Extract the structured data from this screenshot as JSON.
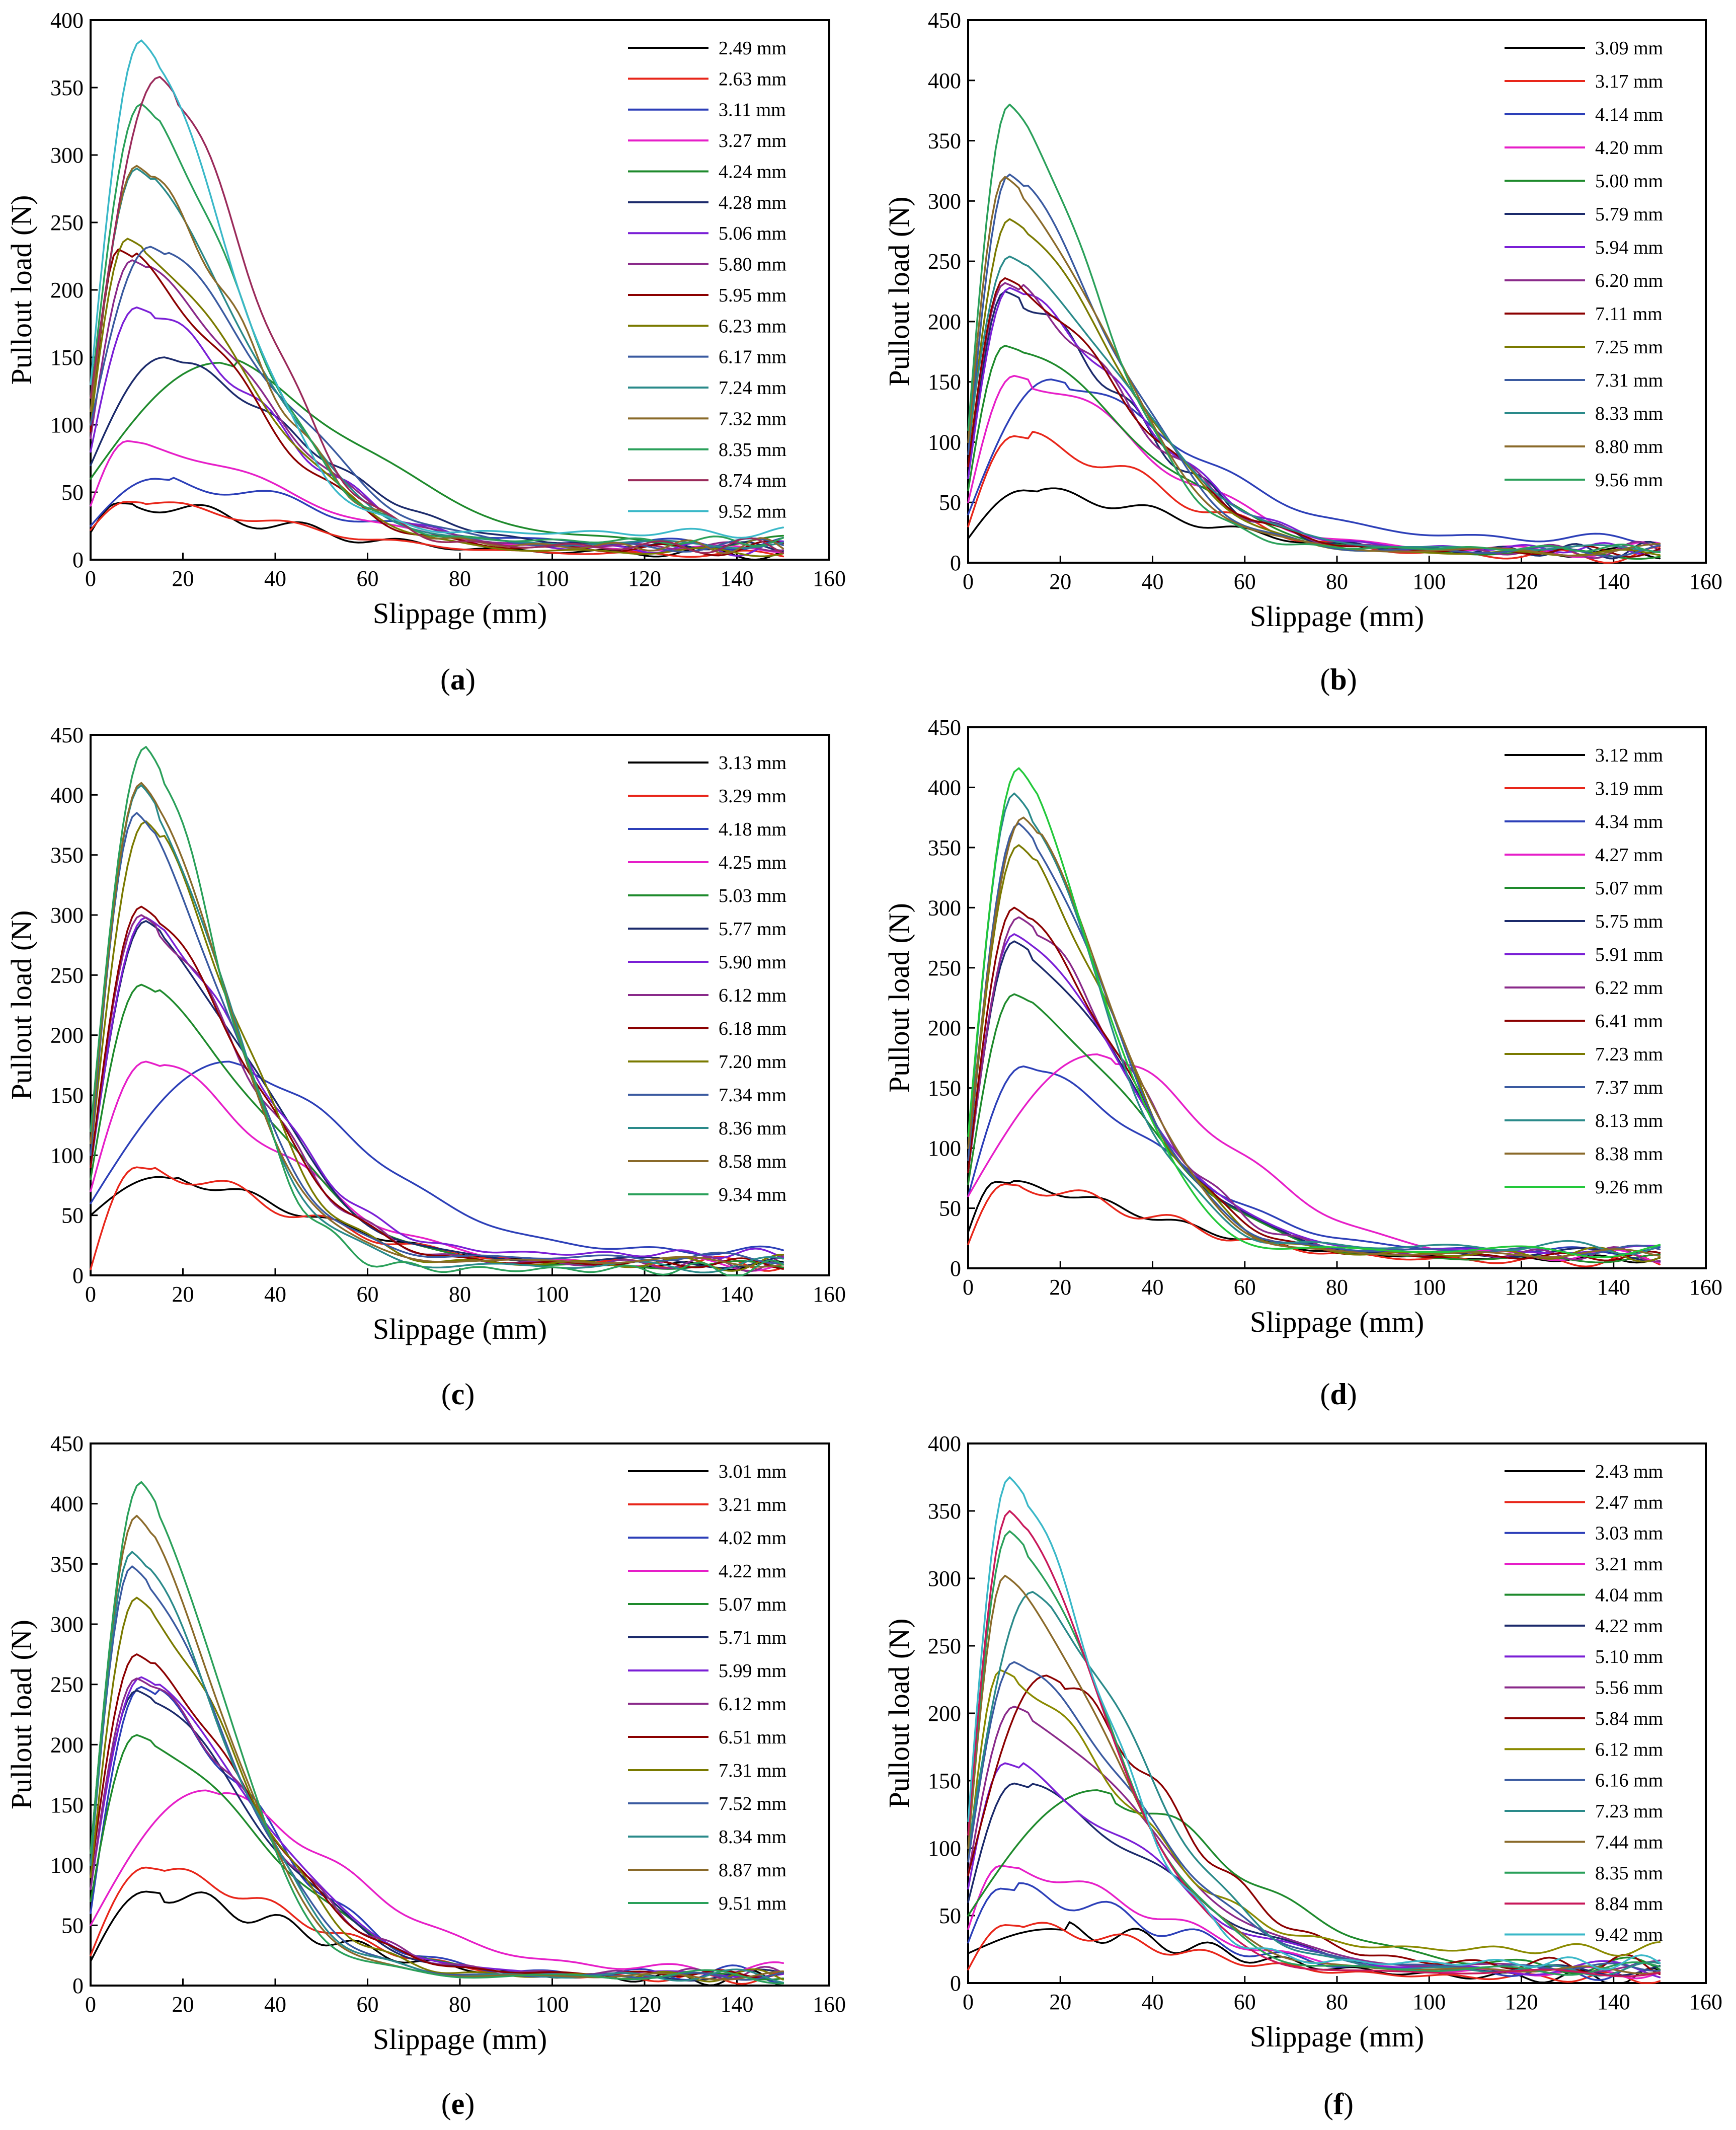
{
  "chart_data": [
    {
      "panel": "a",
      "type": "line",
      "xlabel": "Slippage (mm)",
      "ylabel": "Pullout load (N)",
      "xlim": [
        0,
        160
      ],
      "ylim": [
        0,
        400
      ],
      "xticks": [
        0,
        20,
        40,
        60,
        80,
        100,
        120,
        140,
        160
      ],
      "yticks": [
        0,
        50,
        100,
        150,
        200,
        250,
        300,
        350,
        400
      ],
      "legend_position": "top-right",
      "series": [
        {
          "name": "2.49 mm",
          "color": "#000000",
          "start": 20,
          "peak_x": 6,
          "peak": 42,
          "end": 5
        },
        {
          "name": "2.63 mm",
          "color": "#e8261a",
          "start": 22,
          "peak_x": 8,
          "peak": 43,
          "end": 4
        },
        {
          "name": "3.11 mm",
          "color": "#2c3fb8",
          "start": 25,
          "peak_x": 14,
          "peak": 60,
          "end": 12
        },
        {
          "name": "3.27 mm",
          "color": "#e61ec8",
          "start": 40,
          "peak_x": 8,
          "peak": 88,
          "end": 8
        },
        {
          "name": "4.24 mm",
          "color": "#1e8a2c",
          "start": 60,
          "peak_x": 28,
          "peak": 146,
          "end": 12
        },
        {
          "name": "4.28 mm",
          "color": "#1b2a6b",
          "start": 70,
          "peak_x": 16,
          "peak": 150,
          "end": 10
        },
        {
          "name": "5.06 mm",
          "color": "#7a1fd6",
          "start": 80,
          "peak_x": 10,
          "peak": 187,
          "end": 8
        },
        {
          "name": "5.80 mm",
          "color": "#8a2a8a",
          "start": 90,
          "peak_x": 9,
          "peak": 222,
          "end": 10
        },
        {
          "name": "5.95 mm",
          "color": "#8b0000",
          "start": 95,
          "peak_x": 6,
          "peak": 230,
          "end": 8
        },
        {
          "name": "6.23 mm",
          "color": "#7a7a00",
          "start": 100,
          "peak_x": 8,
          "peak": 238,
          "end": 6
        },
        {
          "name": "6.17 mm",
          "color": "#3a5aa0",
          "start": 100,
          "peak_x": 13,
          "peak": 232,
          "end": 10
        },
        {
          "name": "7.24 mm",
          "color": "#2a8a8a",
          "start": 110,
          "peak_x": 10,
          "peak": 290,
          "end": 12
        },
        {
          "name": "7.32 mm",
          "color": "#8a6a2a",
          "start": 110,
          "peak_x": 10,
          "peak": 292,
          "end": 10
        },
        {
          "name": "8.35 mm",
          "color": "#2aa05a",
          "start": 120,
          "peak_x": 11,
          "peak": 338,
          "end": 14
        },
        {
          "name": "8.74 mm",
          "color": "#9a2a5a",
          "start": 120,
          "peak_x": 15,
          "peak": 358,
          "end": 10
        },
        {
          "name": "9.52 mm",
          "color": "#3ab8c8",
          "start": 130,
          "peak_x": 11,
          "peak": 385,
          "end": 20
        }
      ]
    },
    {
      "panel": "b",
      "type": "line",
      "xlabel": "Slippage (mm)",
      "ylabel": "Pullout load (N)",
      "xlim": [
        0,
        160
      ],
      "ylim": [
        0,
        450
      ],
      "xticks": [
        0,
        20,
        40,
        60,
        80,
        100,
        120,
        140,
        160
      ],
      "yticks": [
        0,
        50,
        100,
        150,
        200,
        250,
        300,
        350,
        400,
        450
      ],
      "legend_position": "top-right",
      "series": [
        {
          "name": "3.09 mm",
          "color": "#000000",
          "start": 20,
          "peak_x": 12,
          "peak": 60,
          "end": 8
        },
        {
          "name": "3.17 mm",
          "color": "#e8261a",
          "start": 30,
          "peak_x": 10,
          "peak": 105,
          "end": 6
        },
        {
          "name": "4.14 mm",
          "color": "#2c3fb8",
          "start": 40,
          "peak_x": 18,
          "peak": 152,
          "end": 20
        },
        {
          "name": "4.20 mm",
          "color": "#e61ec8",
          "start": 50,
          "peak_x": 10,
          "peak": 155,
          "end": 10
        },
        {
          "name": "5.00 mm",
          "color": "#1e8a2c",
          "start": 60,
          "peak_x": 8,
          "peak": 180,
          "end": 8
        },
        {
          "name": "5.79 mm",
          "color": "#1b2a6b",
          "start": 70,
          "peak_x": 8,
          "peak": 225,
          "end": 10
        },
        {
          "name": "5.94 mm",
          "color": "#7a1fd6",
          "start": 70,
          "peak_x": 9,
          "peak": 228,
          "end": 12
        },
        {
          "name": "6.20 mm",
          "color": "#8a2a8a",
          "start": 80,
          "peak_x": 8,
          "peak": 232,
          "end": 10
        },
        {
          "name": "7.11 mm",
          "color": "#8b0000",
          "start": 80,
          "peak_x": 8,
          "peak": 236,
          "end": 10
        },
        {
          "name": "7.25 mm",
          "color": "#7a7a00",
          "start": 90,
          "peak_x": 9,
          "peak": 285,
          "end": 8
        },
        {
          "name": "7.31 mm",
          "color": "#3a5aa0",
          "start": 90,
          "peak_x": 9,
          "peak": 322,
          "end": 10
        },
        {
          "name": "8.33 mm",
          "color": "#2a8a8a",
          "start": 100,
          "peak_x": 9,
          "peak": 254,
          "end": 12
        },
        {
          "name": "8.80 mm",
          "color": "#8a6a2a",
          "start": 100,
          "peak_x": 8,
          "peak": 320,
          "end": 10
        },
        {
          "name": "9.56 mm",
          "color": "#2aa05a",
          "start": 110,
          "peak_x": 9,
          "peak": 380,
          "end": 12
        }
      ]
    },
    {
      "panel": "c",
      "type": "line",
      "xlabel": "Slippage (mm)",
      "ylabel": "Pullout load (N)",
      "xlim": [
        0,
        160
      ],
      "ylim": [
        0,
        450
      ],
      "xticks": [
        0,
        20,
        40,
        60,
        80,
        100,
        120,
        140,
        160
      ],
      "yticks": [
        0,
        50,
        100,
        150,
        200,
        250,
        300,
        350,
        400,
        450
      ],
      "legend_position": "top-right",
      "series": [
        {
          "name": "3.13 mm",
          "color": "#000000",
          "start": 50,
          "peak_x": 15,
          "peak": 82,
          "end": 8
        },
        {
          "name": "3.29 mm",
          "color": "#e8261a",
          "start": 5,
          "peak_x": 10,
          "peak": 90,
          "end": 10
        },
        {
          "name": "4.18 mm",
          "color": "#2c3fb8",
          "start": 60,
          "peak_x": 30,
          "peak": 178,
          "end": 20
        },
        {
          "name": "4.25 mm",
          "color": "#e61ec8",
          "start": 70,
          "peak_x": 12,
          "peak": 178,
          "end": 10
        },
        {
          "name": "5.03 mm",
          "color": "#1e8a2c",
          "start": 80,
          "peak_x": 11,
          "peak": 242,
          "end": 8
        },
        {
          "name": "5.77 mm",
          "color": "#1b2a6b",
          "start": 90,
          "peak_x": 12,
          "peak": 295,
          "end": 12
        },
        {
          "name": "5.90 mm",
          "color": "#7a1fd6",
          "start": 90,
          "peak_x": 12,
          "peak": 298,
          "end": 18
        },
        {
          "name": "6.12 mm",
          "color": "#8a2a8a",
          "start": 90,
          "peak_x": 11,
          "peak": 300,
          "end": 10
        },
        {
          "name": "6.18 mm",
          "color": "#8b0000",
          "start": 90,
          "peak_x": 11,
          "peak": 307,
          "end": 10
        },
        {
          "name": "7.20 mm",
          "color": "#7a7a00",
          "start": 100,
          "peak_x": 12,
          "peak": 378,
          "end": 10
        },
        {
          "name": "7.34 mm",
          "color": "#3a5aa0",
          "start": 100,
          "peak_x": 10,
          "peak": 385,
          "end": 15
        },
        {
          "name": "8.36 mm",
          "color": "#2a8a8a",
          "start": 110,
          "peak_x": 11,
          "peak": 408,
          "end": 8
        },
        {
          "name": "8.58 mm",
          "color": "#8a6a2a",
          "start": 110,
          "peak_x": 11,
          "peak": 410,
          "end": 12
        },
        {
          "name": "9.34 mm",
          "color": "#2aa05a",
          "start": 120,
          "peak_x": 12,
          "peak": 440,
          "end": 5
        }
      ]
    },
    {
      "panel": "d",
      "type": "line",
      "xlabel": "Slippage (mm)",
      "ylabel": "Pullout load (N)",
      "xlim": [
        0,
        160
      ],
      "ylim": [
        0,
        450
      ],
      "xticks": [
        0,
        20,
        40,
        60,
        80,
        100,
        120,
        140,
        160
      ],
      "yticks": [
        0,
        50,
        100,
        150,
        200,
        250,
        300,
        350,
        400,
        450
      ],
      "legend_position": "top-right",
      "series": [
        {
          "name": "3.12 mm",
          "color": "#000000",
          "start": 30,
          "peak_x": 6,
          "peak": 72,
          "end": 8
        },
        {
          "name": "3.19 mm",
          "color": "#e8261a",
          "start": 20,
          "peak_x": 8,
          "peak": 70,
          "end": 6
        },
        {
          "name": "4.34 mm",
          "color": "#2c3fb8",
          "start": 60,
          "peak_x": 12,
          "peak": 168,
          "end": 15
        },
        {
          "name": "4.27 mm",
          "color": "#e61ec8",
          "start": 60,
          "peak_x": 28,
          "peak": 178,
          "end": 10
        },
        {
          "name": "5.07 mm",
          "color": "#1e8a2c",
          "start": 70,
          "peak_x": 10,
          "peak": 228,
          "end": 8
        },
        {
          "name": "5.75 mm",
          "color": "#1b2a6b",
          "start": 80,
          "peak_x": 10,
          "peak": 272,
          "end": 12
        },
        {
          "name": "5.91 mm",
          "color": "#7a1fd6",
          "start": 80,
          "peak_x": 10,
          "peak": 278,
          "end": 15
        },
        {
          "name": "6.22 mm",
          "color": "#8a2a8a",
          "start": 80,
          "peak_x": 11,
          "peak": 292,
          "end": 12
        },
        {
          "name": "6.41 mm",
          "color": "#8b0000",
          "start": 80,
          "peak_x": 10,
          "peak": 300,
          "end": 10
        },
        {
          "name": "7.23 mm",
          "color": "#7a7a00",
          "start": 90,
          "peak_x": 11,
          "peak": 352,
          "end": 12
        },
        {
          "name": "7.37 mm",
          "color": "#3a5aa0",
          "start": 90,
          "peak_x": 11,
          "peak": 370,
          "end": 15
        },
        {
          "name": "8.13 mm",
          "color": "#2a8a8a",
          "start": 100,
          "peak_x": 10,
          "peak": 395,
          "end": 18
        },
        {
          "name": "8.38 mm",
          "color": "#8a6a2a",
          "start": 100,
          "peak_x": 12,
          "peak": 375,
          "end": 12
        },
        {
          "name": "9.26 mm",
          "color": "#22c83a",
          "start": 110,
          "peak_x": 11,
          "peak": 416,
          "end": 15
        }
      ]
    },
    {
      "panel": "e",
      "type": "line",
      "xlabel": "Slippage (mm)",
      "ylabel": "Pullout load (N)",
      "xlim": [
        0,
        160
      ],
      "ylim": [
        0,
        450
      ],
      "xticks": [
        0,
        20,
        40,
        60,
        80,
        100,
        120,
        140,
        160
      ],
      "yticks": [
        0,
        50,
        100,
        150,
        200,
        250,
        300,
        350,
        400,
        450
      ],
      "legend_position": "top-right",
      "series": [
        {
          "name": "3.01 mm",
          "color": "#000000",
          "start": 20,
          "peak_x": 12,
          "peak": 78,
          "end": 6
        },
        {
          "name": "3.21 mm",
          "color": "#e8261a",
          "start": 25,
          "peak_x": 12,
          "peak": 98,
          "end": 6
        },
        {
          "name": "4.02 mm",
          "color": "#2c3fb8",
          "start": 60,
          "peak_x": 11,
          "peak": 248,
          "end": 10
        },
        {
          "name": "4.22 mm",
          "color": "#e61ec8",
          "start": 50,
          "peak_x": 25,
          "peak": 162,
          "end": 14
        },
        {
          "name": "5.07 mm",
          "color": "#1e8a2c",
          "start": 70,
          "peak_x": 10,
          "peak": 208,
          "end": 8
        },
        {
          "name": "5.71 mm",
          "color": "#1b2a6b",
          "start": 80,
          "peak_x": 10,
          "peak": 245,
          "end": 8
        },
        {
          "name": "5.99 mm",
          "color": "#7a1fd6",
          "start": 80,
          "peak_x": 11,
          "peak": 256,
          "end": 10
        },
        {
          "name": "6.12 mm",
          "color": "#8a2a8a",
          "start": 80,
          "peak_x": 10,
          "peak": 255,
          "end": 10
        },
        {
          "name": "6.51 mm",
          "color": "#8b0000",
          "start": 90,
          "peak_x": 10,
          "peak": 275,
          "end": 10
        },
        {
          "name": "7.31 mm",
          "color": "#7a7a00",
          "start": 90,
          "peak_x": 10,
          "peak": 322,
          "end": 8
        },
        {
          "name": "7.52 mm",
          "color": "#3a5aa0",
          "start": 100,
          "peak_x": 9,
          "peak": 348,
          "end": 8
        },
        {
          "name": "8.34 mm",
          "color": "#2a8a8a",
          "start": 100,
          "peak_x": 9,
          "peak": 360,
          "end": 8
        },
        {
          "name": "8.87 mm",
          "color": "#8a6a2a",
          "start": 110,
          "peak_x": 10,
          "peak": 390,
          "end": 8
        },
        {
          "name": "9.51 mm",
          "color": "#2aa05a",
          "start": 110,
          "peak_x": 11,
          "peak": 418,
          "end": 8
        }
      ]
    },
    {
      "panel": "f",
      "type": "line",
      "xlabel": "Slippage (mm)",
      "ylabel": "Pullout load (N)",
      "xlim": [
        0,
        160
      ],
      "ylim": [
        0,
        400
      ],
      "xticks": [
        0,
        20,
        40,
        60,
        80,
        100,
        120,
        140,
        160
      ],
      "yticks": [
        0,
        50,
        100,
        150,
        200,
        250,
        300,
        350,
        400
      ],
      "legend_position": "top-right",
      "series": [
        {
          "name": "2.43 mm",
          "color": "#000000",
          "start": 22,
          "peak_x": 18,
          "peak": 40,
          "end": 4
        },
        {
          "name": "2.47 mm",
          "color": "#e8261a",
          "start": 10,
          "peak_x": 8,
          "peak": 43,
          "end": 4
        },
        {
          "name": "3.03 mm",
          "color": "#2c3fb8",
          "start": 30,
          "peak_x": 7,
          "peak": 70,
          "end": 8
        },
        {
          "name": "3.21 mm",
          "color": "#e61ec8",
          "start": 40,
          "peak_x": 7,
          "peak": 87,
          "end": 8
        },
        {
          "name": "4.04 mm",
          "color": "#1e8a2c",
          "start": 50,
          "peak_x": 28,
          "peak": 143,
          "end": 12
        },
        {
          "name": "4.22 mm",
          "color": "#1b2a6b",
          "start": 60,
          "peak_x": 10,
          "peak": 148,
          "end": 10
        },
        {
          "name": "5.10 mm",
          "color": "#7a1fd6",
          "start": 70,
          "peak_x": 8,
          "peak": 163,
          "end": 10
        },
        {
          "name": "5.56 mm",
          "color": "#8a2a8a",
          "start": 80,
          "peak_x": 10,
          "peak": 205,
          "end": 12
        },
        {
          "name": "5.84 mm",
          "color": "#8b0000",
          "start": 80,
          "peak_x": 17,
          "peak": 228,
          "end": 14
        },
        {
          "name": "6.12 mm",
          "color": "#8a8a00",
          "start": 90,
          "peak_x": 7,
          "peak": 232,
          "end": 25
        },
        {
          "name": "6.16 mm",
          "color": "#3a5aa0",
          "start": 90,
          "peak_x": 10,
          "peak": 238,
          "end": 12
        },
        {
          "name": "7.23 mm",
          "color": "#2a8a8a",
          "start": 100,
          "peak_x": 14,
          "peak": 290,
          "end": 10
        },
        {
          "name": "7.44 mm",
          "color": "#8a6a2a",
          "start": 100,
          "peak_x": 8,
          "peak": 302,
          "end": 10
        },
        {
          "name": "8.35 mm",
          "color": "#2aa05a",
          "start": 110,
          "peak_x": 9,
          "peak": 335,
          "end": 10
        },
        {
          "name": "8.84 mm",
          "color": "#c8185a",
          "start": 110,
          "peak_x": 9,
          "peak": 350,
          "end": 8
        },
        {
          "name": "9.42 mm",
          "color": "#3ab8c8",
          "start": 120,
          "peak_x": 9,
          "peak": 375,
          "end": 15
        }
      ]
    }
  ]
}
